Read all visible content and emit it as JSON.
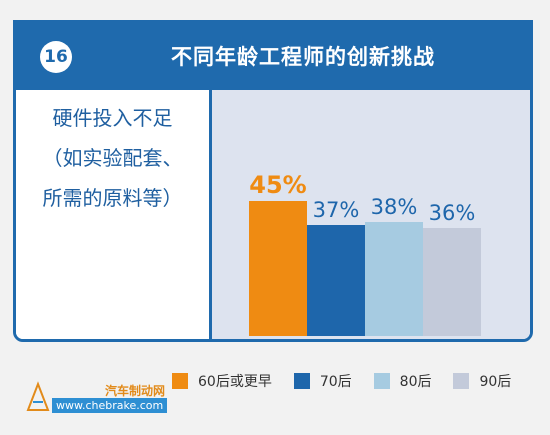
{
  "header": {
    "number": "16",
    "title": "不同年龄工程师的创新挑战"
  },
  "description": {
    "lines": [
      "硬件投入不足",
      "（如实验配套、",
      "所需的原料等）"
    ]
  },
  "chart_data": {
    "type": "bar",
    "categories": [
      "60后或更早",
      "70后",
      "80后",
      "90后"
    ],
    "values": [
      45,
      37,
      38,
      36
    ],
    "value_labels": [
      "45%",
      "37%",
      "38%",
      "36%"
    ],
    "colors": [
      "#ef8b12",
      "#1e66ab",
      "#a6cbe1",
      "#c3cada"
    ],
    "label_colors": [
      "#ef8b12",
      "#1e66ab",
      "#1e66ab",
      "#1e66ab"
    ],
    "unit": "%",
    "ylim": [
      0,
      55
    ],
    "legend": "bottom"
  },
  "legend": {
    "items": [
      {
        "label": "60后或更早",
        "color": "#ef8b12"
      },
      {
        "label": "70后",
        "color": "#1e66ab"
      },
      {
        "label": "80后",
        "color": "#a6cbe1"
      },
      {
        "label": "90后",
        "color": "#c3cada"
      }
    ]
  },
  "watermark": {
    "site_name": "汽车制动网",
    "url": "www.chebrake.com"
  }
}
